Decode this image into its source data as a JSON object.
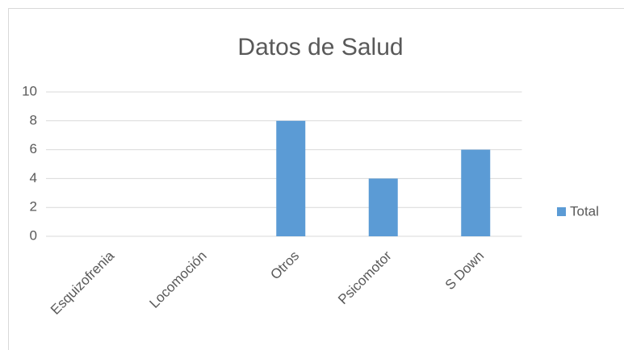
{
  "chart_data": {
    "type": "bar",
    "title": "Datos de Salud",
    "categories": [
      "Esquizofrenia",
      "Locomoción",
      "Otros",
      "Psicomotor",
      "S Down"
    ],
    "series": [
      {
        "name": "Total",
        "color": "#5b9bd5",
        "values": [
          0,
          0,
          8,
          4,
          6
        ]
      }
    ],
    "ylim": [
      0,
      10
    ],
    "yticks": [
      0,
      2,
      4,
      6,
      8,
      10
    ],
    "grid": true,
    "legend": "right"
  }
}
